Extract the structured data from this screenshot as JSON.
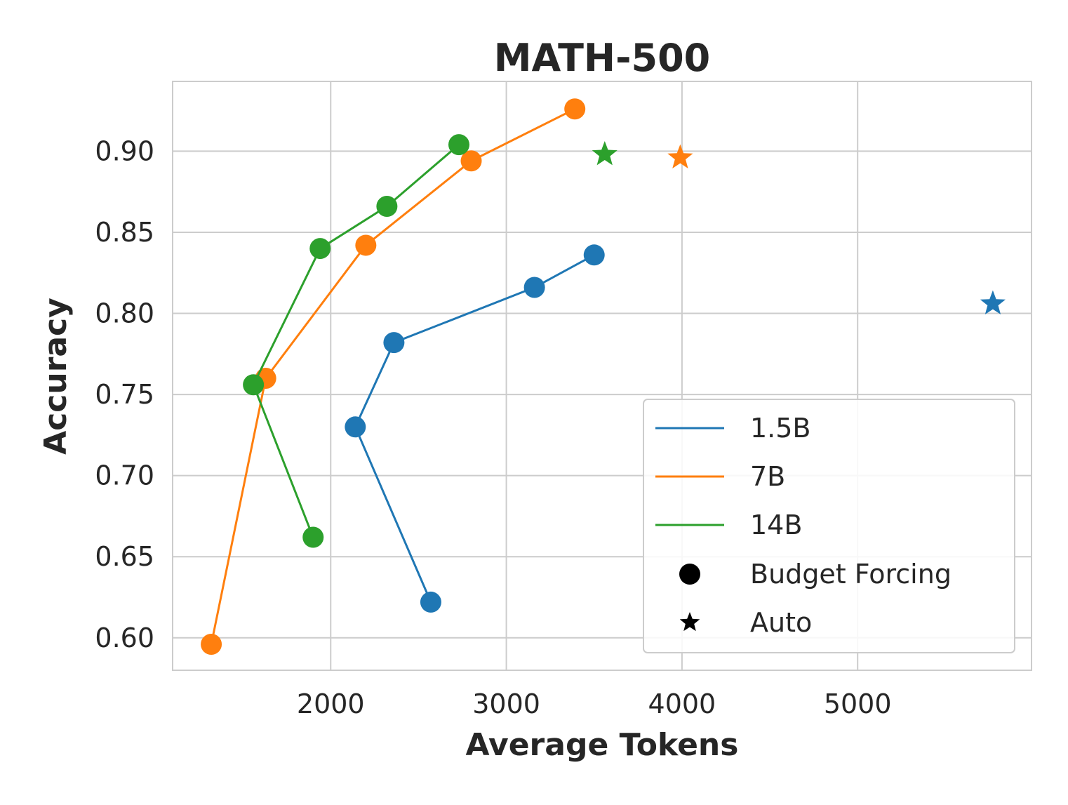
{
  "chart_data": {
    "type": "scatter",
    "title": "MATH-500",
    "xlabel": "Average Tokens",
    "ylabel": "Accuracy",
    "xlim": [
      1100,
      5990
    ],
    "ylim": [
      0.58,
      0.943
    ],
    "xticks": [
      2000,
      3000,
      4000,
      5000
    ],
    "xtick_labels": [
      "2000",
      "3000",
      "4000",
      "5000"
    ],
    "yticks": [
      0.6,
      0.65,
      0.7,
      0.75,
      0.8,
      0.85,
      0.9
    ],
    "ytick_labels": [
      "0.60",
      "0.65",
      "0.70",
      "0.75",
      "0.80",
      "0.85",
      "0.90"
    ],
    "grid": true,
    "legend_position": "lower-right",
    "series": [
      {
        "name": "1.5B",
        "color": "#1f77b4",
        "budget_forcing": [
          {
            "x": 2570,
            "y": 0.622
          },
          {
            "x": 2140,
            "y": 0.73
          },
          {
            "x": 2360,
            "y": 0.782
          },
          {
            "x": 3160,
            "y": 0.816
          },
          {
            "x": 3500,
            "y": 0.836
          }
        ],
        "auto": {
          "x": 5770,
          "y": 0.806
        }
      },
      {
        "name": "7B",
        "color": "#ff7f0e",
        "budget_forcing": [
          {
            "x": 1320,
            "y": 0.596
          },
          {
            "x": 1630,
            "y": 0.76
          },
          {
            "x": 2200,
            "y": 0.842
          },
          {
            "x": 2800,
            "y": 0.894
          },
          {
            "x": 3390,
            "y": 0.926
          }
        ],
        "auto": {
          "x": 3990,
          "y": 0.896
        }
      },
      {
        "name": "14B",
        "color": "#2ca02c",
        "budget_forcing": [
          {
            "x": 1900,
            "y": 0.662
          },
          {
            "x": 1560,
            "y": 0.756
          },
          {
            "x": 1940,
            "y": 0.84
          },
          {
            "x": 2320,
            "y": 0.866
          },
          {
            "x": 2730,
            "y": 0.904
          }
        ],
        "auto": {
          "x": 3560,
          "y": 0.898
        }
      }
    ],
    "marker_legend": [
      {
        "label": "Budget Forcing",
        "marker": "circle"
      },
      {
        "label": "Auto",
        "marker": "star"
      }
    ]
  }
}
